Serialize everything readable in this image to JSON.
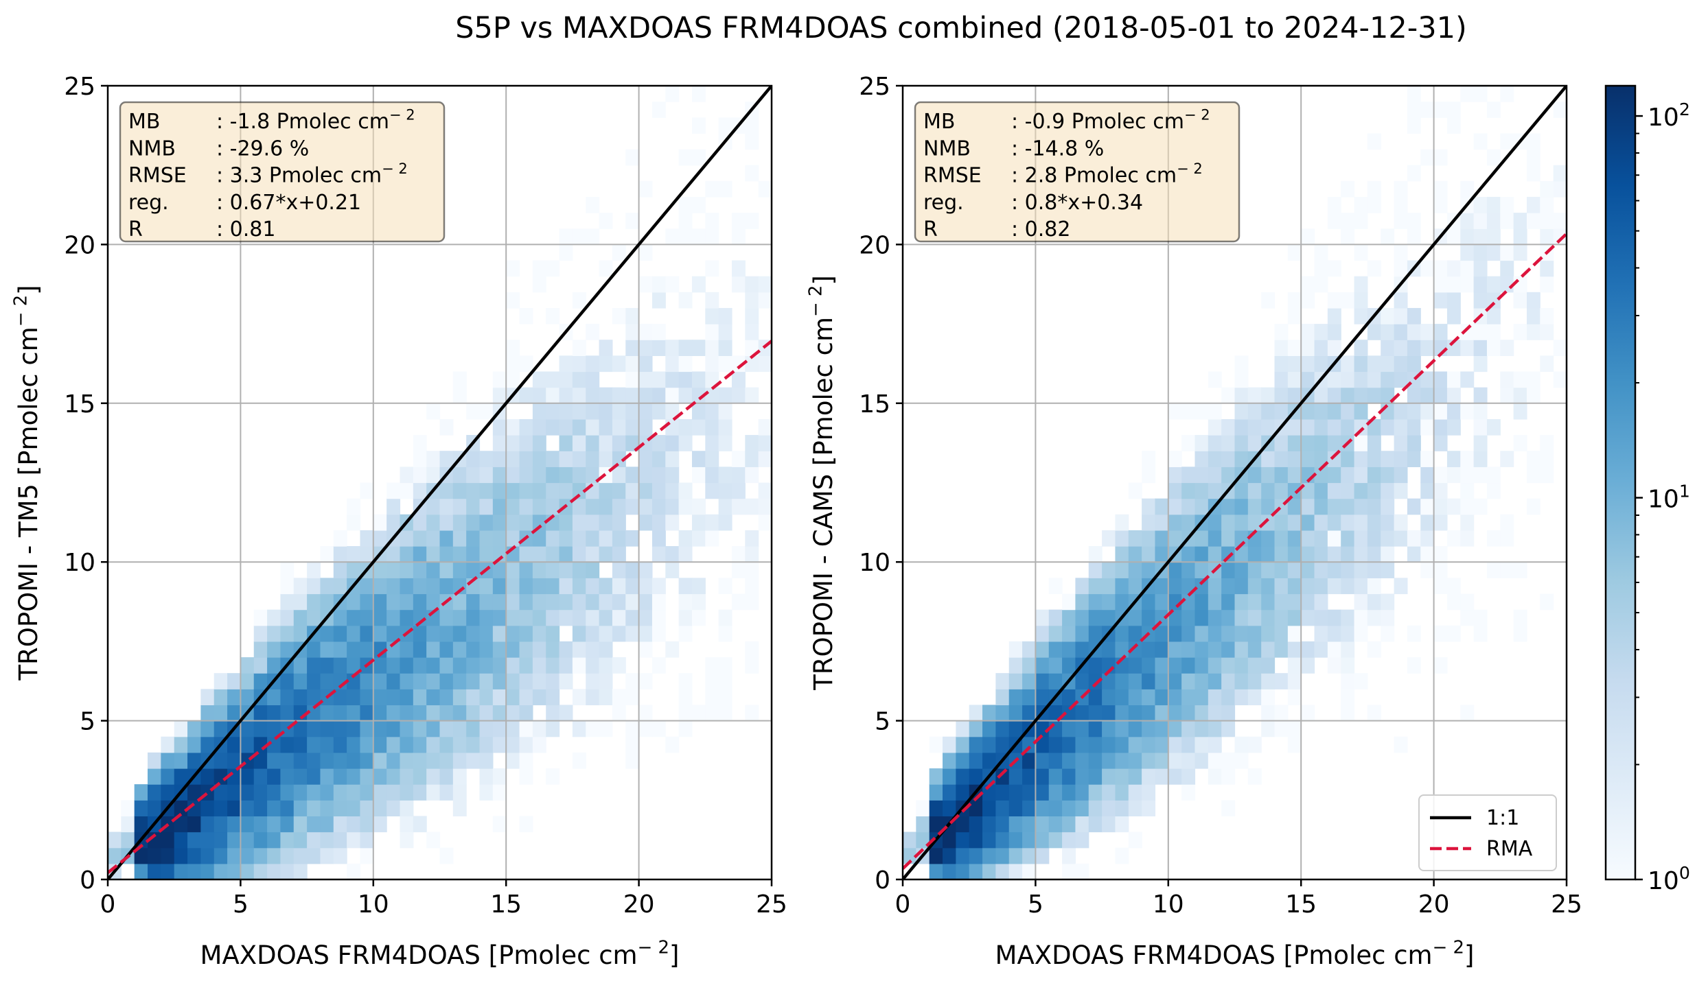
{
  "chart_data": {
    "title": "S5P vs MAXDOAS FRM4DOAS combined (2018-05-01 to 2024-12-31)",
    "colormap": [
      "#f7fbff",
      "#deebf7",
      "#c6dbef",
      "#9ecae1",
      "#6baed6",
      "#4292c6",
      "#2171b5",
      "#08519c",
      "#08306b"
    ],
    "colorbar": {
      "scale": "log",
      "range": [
        1,
        120
      ],
      "ticks": [
        {
          "value": 1,
          "base": "10",
          "exp": "0"
        },
        {
          "value": 10,
          "base": "10",
          "exp": "1"
        },
        {
          "value": 100,
          "base": "10",
          "exp": "2"
        }
      ]
    },
    "panels": [
      {
        "type": "heatmap",
        "xlabel": "MAXDOAS FRM4DOAS [Pmolec cm",
        "xlabel_sup": "− 2",
        "xlabel_end": "]",
        "ylabel": "TROPOMI - TM5 [Pmolec cm",
        "ylabel_sup": "− 2",
        "ylabel_end": "]",
        "xlim": [
          0,
          25
        ],
        "ylim": [
          0,
          25
        ],
        "grid": true,
        "xticks": [
          "0",
          "5",
          "10",
          "15",
          "20",
          "25"
        ],
        "yticks": [
          "0",
          "5",
          "10",
          "15",
          "20",
          "25"
        ],
        "bin_width": 0.5,
        "stats": [
          {
            "key": "MB",
            "value": ": -1.8 Pmolec cm",
            "sup": "− 2"
          },
          {
            "key": "NMB",
            "value": ": -29.6 %",
            "sup": ""
          },
          {
            "key": "RMSE",
            "value": ": 3.3 Pmolec cm",
            "sup": "− 2"
          },
          {
            "key": "reg.",
            "value": ": 0.67*x+0.21",
            "sup": ""
          },
          {
            "key": "R",
            "value": ": 0.81",
            "sup": ""
          }
        ],
        "slope": 0.67,
        "intercept": 0.21,
        "identity_color": "#000000",
        "rma_color": "#dc143c",
        "legend": null
      },
      {
        "type": "heatmap",
        "xlabel": "MAXDOAS FRM4DOAS [Pmolec cm",
        "xlabel_sup": "− 2",
        "xlabel_end": "]",
        "ylabel": "TROPOMI - CAMS [Pmolec cm",
        "ylabel_sup": "− 2",
        "ylabel_end": "]",
        "xlim": [
          0,
          25
        ],
        "ylim": [
          0,
          25
        ],
        "grid": true,
        "xticks": [
          "0",
          "5",
          "10",
          "15",
          "20",
          "25"
        ],
        "yticks": [
          "0",
          "5",
          "10",
          "15",
          "20",
          "25"
        ],
        "bin_width": 0.5,
        "stats": [
          {
            "key": "MB",
            "value": ": -0.9 Pmolec cm",
            "sup": "− 2"
          },
          {
            "key": "NMB",
            "value": ": -14.8 %",
            "sup": ""
          },
          {
            "key": "RMSE",
            "value": ": 2.8 Pmolec cm",
            "sup": "− 2"
          },
          {
            "key": "reg.",
            "value": ": 0.8*x+0.34",
            "sup": ""
          },
          {
            "key": "R",
            "value": ": 0.82",
            "sup": ""
          }
        ],
        "slope": 0.8,
        "intercept": 0.34,
        "identity_color": "#000000",
        "rma_color": "#dc143c",
        "legend": {
          "placement": "bottom-right",
          "entries": [
            "1:1",
            "RMA"
          ]
        }
      }
    ]
  }
}
